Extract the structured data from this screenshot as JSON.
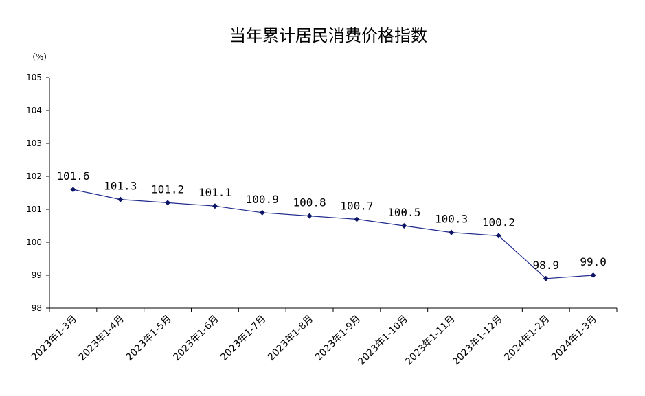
{
  "chart_data": {
    "type": "line",
    "title": "当年累计居民消费价格指数",
    "unit_label": "（%）",
    "ylim": [
      98,
      105
    ],
    "yticks": [
      "98",
      "99",
      "100",
      "101",
      "102",
      "103",
      "104",
      "105"
    ],
    "grid": false,
    "categories": [
      "2023年1-3月",
      "2023年1-4月",
      "2023年1-5月",
      "2023年1-6月",
      "2023年1-7月",
      "2023年1-8月",
      "2023年1-9月",
      "2023年1-10月",
      "2023年1-11月",
      "2023年1-12月",
      "2024年1-2月",
      "2024年1-3月"
    ],
    "series": [
      {
        "values": [
          101.6,
          101.3,
          101.2,
          101.1,
          100.9,
          100.8,
          100.7,
          100.5,
          100.3,
          100.2,
          98.9,
          99.0
        ],
        "data_labels": [
          "101.6",
          "101.3",
          "101.2",
          "101.1",
          "100.9",
          "100.8",
          "100.7",
          "100.5",
          "100.3",
          "100.2",
          "98.9",
          "99.0"
        ],
        "color": "#1f2a8c"
      }
    ]
  }
}
